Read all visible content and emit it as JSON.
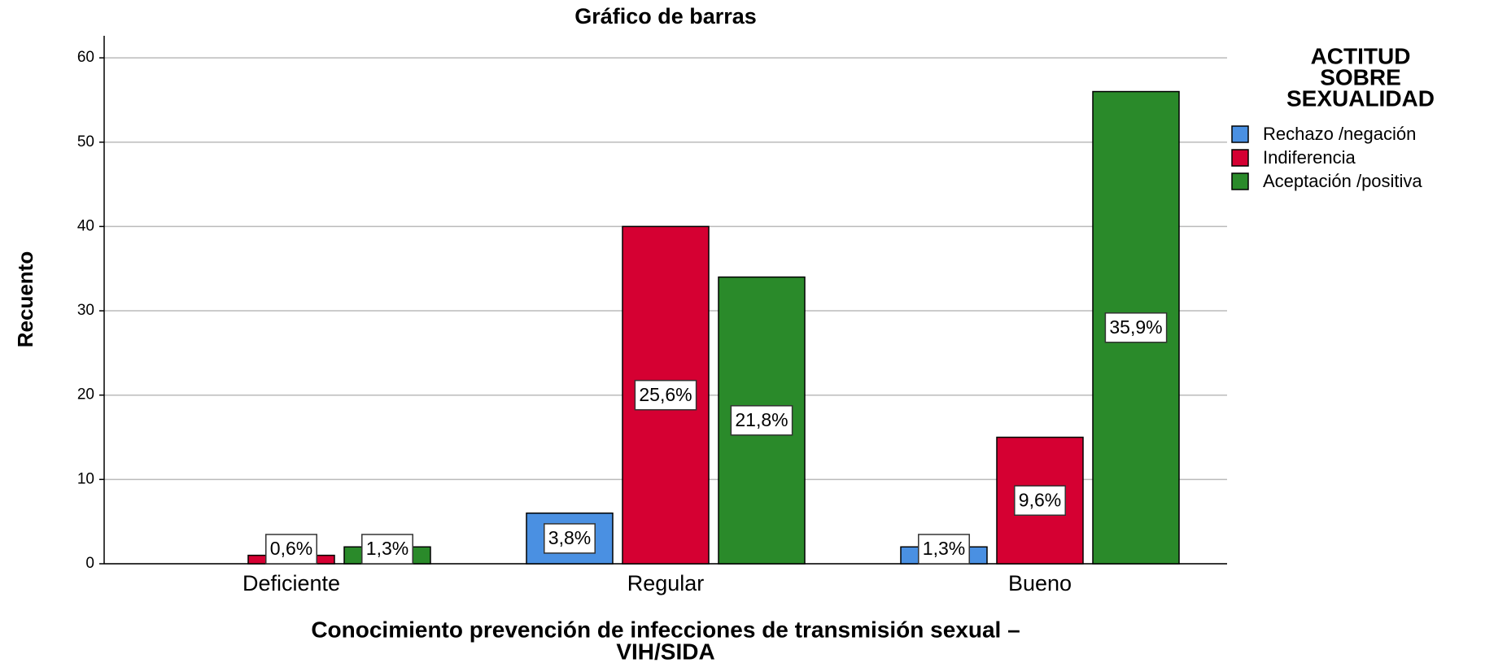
{
  "chart_data": {
    "type": "bar",
    "title": "Gráfico de barras",
    "categories": [
      "Deficiente",
      "Regular",
      "Bueno"
    ],
    "series": [
      {
        "name": "Rechazo /negación",
        "color": "#4a90e2",
        "values": [
          0,
          6,
          2
        ],
        "value_labels": [
          null,
          "3,8%",
          "1,3%"
        ]
      },
      {
        "name": "Indiferencia",
        "color": "#d50032",
        "values": [
          1,
          40,
          15
        ],
        "value_labels": [
          "0,6%",
          "25,6%",
          "9,6%"
        ]
      },
      {
        "name": "Aceptación /positiva",
        "color": "#2a8a2a",
        "values": [
          2,
          34,
          56
        ],
        "value_labels": [
          "1,3%",
          "21,8%",
          "35,9%"
        ]
      }
    ],
    "ylabel": "Recuento",
    "xlabel": [
      "Conocimiento prevención de infecciones de transmisión sexual –",
      "VIH/SIDA"
    ],
    "legend_title": [
      "ACTITUD",
      "SOBRE",
      "SEXUALIDAD"
    ],
    "legend": "right",
    "ylim": [
      0,
      63
    ],
    "yticks": [
      0,
      10,
      20,
      30,
      40,
      50,
      60
    ],
    "grid": true
  }
}
